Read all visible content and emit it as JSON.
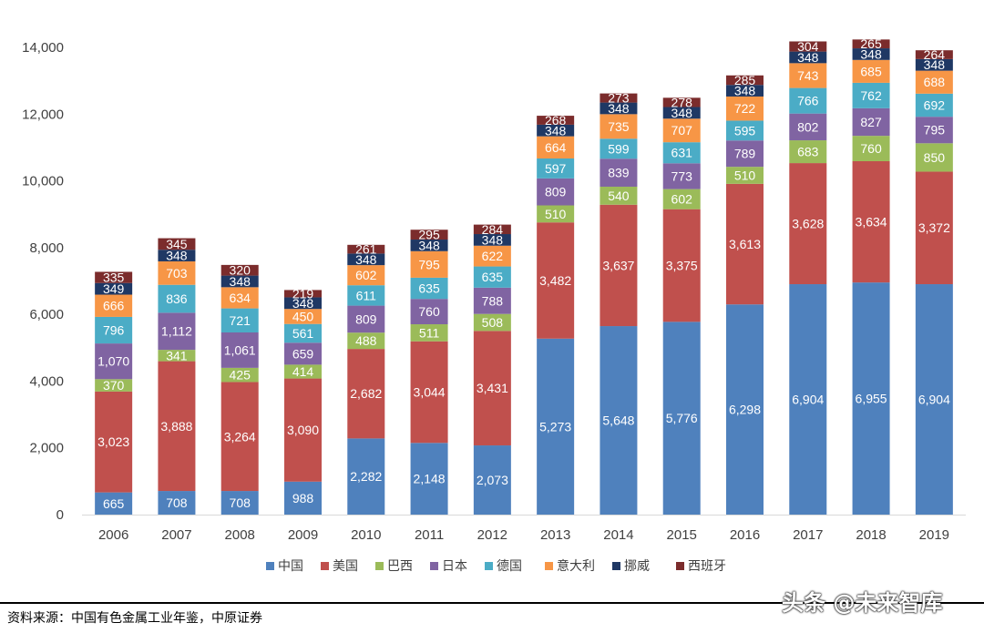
{
  "chart_data": {
    "type": "bar",
    "stacked": true,
    "categories": [
      "2006",
      "2007",
      "2008",
      "2009",
      "2010",
      "2011",
      "2012",
      "2013",
      "2014",
      "2015",
      "2016",
      "2017",
      "2018",
      "2019"
    ],
    "ylim": [
      0,
      14000
    ],
    "yticks": [
      0,
      2000,
      4000,
      6000,
      8000,
      10000,
      12000,
      14000
    ],
    "ytick_labels": [
      "0",
      "2,000",
      "4,000",
      "6,000",
      "8,000",
      "10,000",
      "12,000",
      "14,000"
    ],
    "legend_position": "bottom",
    "series": [
      {
        "name": "中国",
        "color": "#4f81bd",
        "values": [
          665,
          708,
          708,
          988,
          2282,
          2148,
          2073,
          5273,
          5648,
          5776,
          6298,
          6904,
          6955,
          6904
        ]
      },
      {
        "name": "美国",
        "color": "#c0504d",
        "values": [
          3023,
          3888,
          3264,
          3090,
          2682,
          3044,
          3431,
          3482,
          3637,
          3375,
          3613,
          3628,
          3634,
          3372
        ]
      },
      {
        "name": "巴西",
        "color": "#9bbb59",
        "values": [
          370,
          341,
          425,
          414,
          488,
          511,
          508,
          510,
          540,
          602,
          510,
          683,
          760,
          850
        ]
      },
      {
        "name": "日本",
        "color": "#8064a2",
        "values": [
          1070,
          1112,
          1061,
          659,
          809,
          760,
          788,
          809,
          839,
          773,
          789,
          802,
          827,
          795
        ]
      },
      {
        "name": "德国",
        "color": "#4bacc6",
        "values": [
          796,
          836,
          721,
          561,
          611,
          635,
          635,
          597,
          599,
          631,
          595,
          766,
          762,
          692
        ]
      },
      {
        "name": "意大利",
        "color": "#f79646",
        "values": [
          666,
          703,
          634,
          450,
          602,
          795,
          622,
          664,
          735,
          707,
          722,
          743,
          685,
          688
        ]
      },
      {
        "name": "挪威",
        "color": "#1f3864",
        "values": [
          349,
          348,
          348,
          348,
          348,
          348,
          348,
          348,
          348,
          348,
          348,
          348,
          348,
          348
        ]
      },
      {
        "name": "西班牙",
        "color": "#7b2c2c",
        "values": [
          335,
          345,
          320,
          219,
          261,
          295,
          284,
          268,
          273,
          278,
          285,
          304,
          265,
          264
        ]
      }
    ]
  },
  "footer": {
    "source": "资料来源：中国有色金属工业年鉴，中原证券",
    "watermark": "头条 @未来智库"
  }
}
